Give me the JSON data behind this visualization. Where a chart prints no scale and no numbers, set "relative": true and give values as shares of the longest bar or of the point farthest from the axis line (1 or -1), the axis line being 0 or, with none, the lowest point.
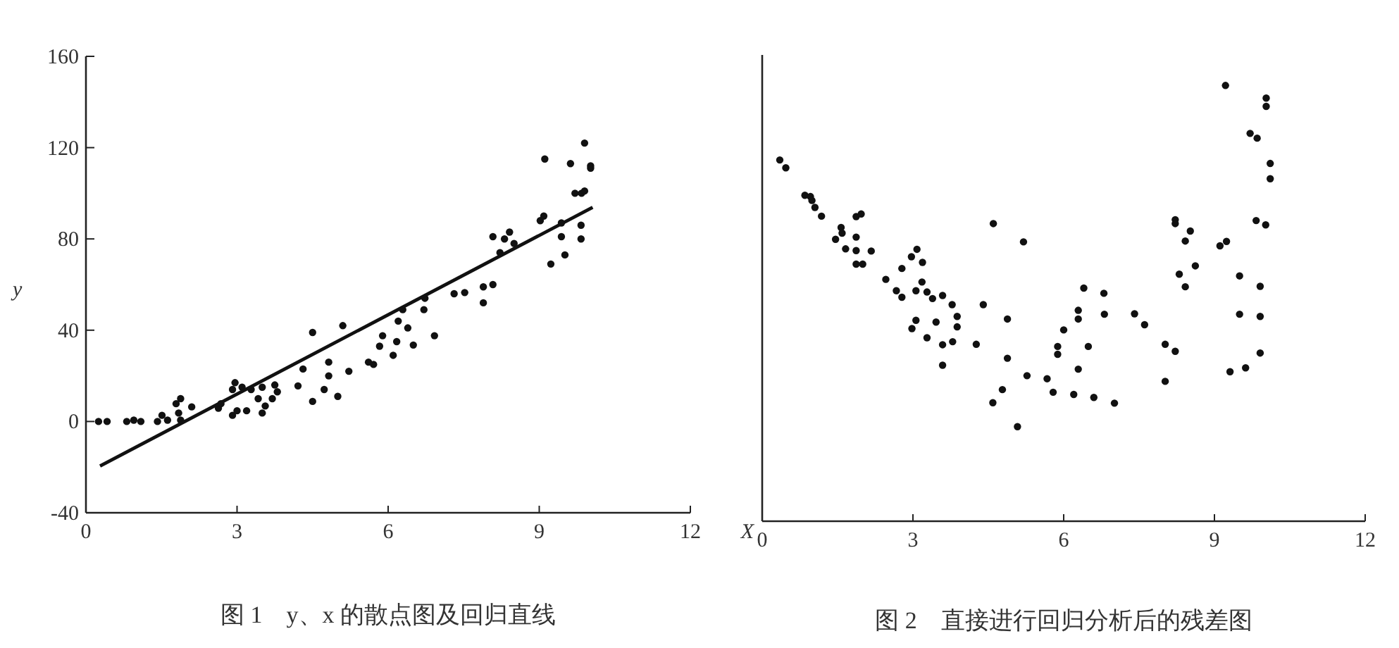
{
  "chart_data": [
    {
      "type": "scatter",
      "title": "图 1　y、x 的散点图及回归直线",
      "ylabel": "y",
      "xlim": [
        0,
        12
      ],
      "xticks": [
        0,
        3,
        6,
        9,
        12
      ],
      "ylim": [
        -40,
        160
      ],
      "yticks": [
        -40,
        0,
        40,
        80,
        120,
        160
      ],
      "grid": false,
      "series": [
        {
          "marker": "circle",
          "color": "#111111",
          "x": [
            0.25,
            0.42,
            0.81,
            0.95,
            1.09,
            1.42,
            1.51,
            1.62,
            1.79,
            1.88,
            1.84,
            1.88,
            2.1,
            2.63,
            2.68,
            2.91,
            2.96,
            2.91,
            3.0,
            3.1,
            3.19,
            3.28,
            3.42,
            3.5,
            3.5,
            3.56,
            3.7,
            3.75,
            3.8,
            4.21,
            4.31,
            4.5,
            4.5,
            4.73,
            4.82,
            4.82,
            5.0,
            5.1,
            5.22,
            5.61,
            5.71,
            5.83,
            5.89,
            6.1,
            6.17,
            6.2,
            6.29,
            6.39,
            6.5,
            6.71,
            6.73,
            6.92,
            7.31,
            7.52,
            7.89,
            7.89,
            8.08,
            8.08,
            8.22,
            8.31,
            8.41,
            8.5,
            9.02,
            9.09,
            9.11,
            9.23,
            9.44,
            9.44,
            9.51,
            9.62,
            9.71,
            9.84,
            9.83,
            9.83,
            9.9,
            9.9,
            10.02,
            10.02
          ],
          "values": [
            0,
            0,
            0,
            0.6,
            0,
            0,
            2.7,
            0.6,
            7.8,
            10,
            3.7,
            0.6,
            6.4,
            5.8,
            7.8,
            14,
            17,
            2.7,
            4.7,
            15,
            4.7,
            14,
            10,
            15,
            3.7,
            6.8,
            10,
            16,
            13,
            15.6,
            23,
            39,
            8.8,
            14,
            26,
            20,
            11,
            42,
            22,
            26,
            25,
            33,
            37.6,
            29,
            35,
            44,
            49,
            41,
            33.5,
            49,
            54,
            37.6,
            56,
            56.5,
            52,
            59,
            60,
            81,
            74,
            80,
            83,
            78,
            88,
            90,
            115,
            69,
            87,
            81,
            73,
            113,
            100,
            100,
            86,
            80,
            122,
            101,
            112,
            111
          ]
        },
        {
          "type": "line",
          "marker": "none",
          "color": "#111111",
          "x": [
            0.28,
            10.06
          ],
          "values": [
            -19.5,
            93.8
          ]
        }
      ]
    },
    {
      "type": "scatter",
      "title": "图 2　直接进行回归分析后的残差图",
      "xlabel": "X",
      "relative": true,
      "xlim": [
        0,
        12
      ],
      "xticks": [
        0,
        3,
        6,
        9,
        12
      ],
      "marker": "circle",
      "grid": false,
      "series": [
        {
          "color": "#111111",
          "x": [
            0.35,
            0.47,
            0.85,
            0.96,
            0.99,
            1.05,
            1.18,
            1.46,
            1.57,
            1.59,
            1.66,
            1.87,
            1.97,
            1.87,
            1.87,
            1.87,
            2.0,
            2.17,
            2.46,
            2.67,
            2.78,
            2.78,
            2.97,
            3.08,
            3.19,
            3.06,
            3.18,
            3.28,
            3.39,
            2.98,
            3.06,
            3.28,
            3.46,
            3.59,
            3.59,
            3.59,
            3.78,
            3.79,
            3.88,
            3.88,
            4.26,
            4.4,
            4.6,
            4.59,
            4.78,
            4.88,
            4.88,
            5.08,
            5.2,
            5.27,
            5.67,
            5.79,
            5.88,
            5.88,
            6.0,
            6.2,
            6.29,
            6.29,
            6.29,
            6.4,
            6.49,
            6.6,
            6.8,
            6.81,
            7.01,
            7.41,
            7.61,
            8.02,
            8.02,
            8.22,
            8.22,
            8.22,
            8.3,
            8.42,
            8.42,
            8.52,
            8.62,
            9.11,
            9.24,
            9.22,
            9.31,
            9.5,
            9.5,
            9.62,
            9.71,
            9.85,
            9.83,
            9.91,
            9.91,
            9.91,
            10.03,
            10.03,
            10.02,
            10.11,
            10.11
          ],
          "values": [
            0.829,
            0.811,
            0.748,
            0.745,
            0.736,
            0.72,
            0.7,
            0.647,
            0.674,
            0.661,
            0.625,
            0.699,
            0.705,
            0.652,
            0.621,
            0.59,
            0.59,
            0.62,
            0.555,
            0.529,
            0.58,
            0.514,
            0.607,
            0.624,
            0.594,
            0.529,
            0.549,
            0.526,
            0.511,
            0.442,
            0.461,
            0.421,
            0.457,
            0.518,
            0.405,
            0.358,
            0.497,
            0.412,
            0.47,
            0.446,
            0.406,
            0.497,
            0.683,
            0.272,
            0.302,
            0.464,
            0.374,
            0.217,
            0.641,
            0.334,
            0.327,
            0.296,
            0.401,
            0.383,
            0.439,
            0.291,
            0.484,
            0.464,
            0.349,
            0.535,
            0.401,
            0.284,
            0.523,
            0.475,
            0.271,
            0.476,
            0.451,
            0.406,
            0.321,
            0.39,
            0.692,
            0.683,
            0.567,
            0.538,
            0.643,
            0.666,
            0.586,
            0.632,
            0.642,
            1.0,
            0.343,
            0.563,
            0.475,
            0.352,
            0.89,
            0.879,
            0.69,
            0.539,
            0.47,
            0.386,
            0.971,
            0.952,
            0.68,
            0.821,
            0.786
          ]
        }
      ]
    }
  ]
}
